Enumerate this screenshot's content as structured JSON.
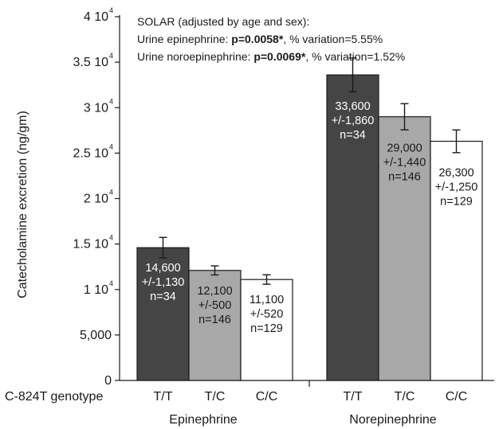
{
  "chart_data": {
    "type": "bar",
    "ylabel": "Catecholamine excretion (ng/gm)",
    "ylim": [
      0,
      40000
    ],
    "y_ticks": [
      {
        "value": 0,
        "label": "0",
        "exp": ""
      },
      {
        "value": 5000,
        "label": "5,000",
        "exp": ""
      },
      {
        "value": 10000,
        "label": "1 10",
        "exp": "4"
      },
      {
        "value": 15000,
        "label": "1.5 10",
        "exp": "4"
      },
      {
        "value": 20000,
        "label": "2 10",
        "exp": "4"
      },
      {
        "value": 25000,
        "label": "2.5 10",
        "exp": "4"
      },
      {
        "value": 30000,
        "label": "3 10",
        "exp": "4"
      },
      {
        "value": 35000,
        "label": "3.5 10",
        "exp": "4"
      },
      {
        "value": 40000,
        "label": "4 10",
        "exp": "4"
      }
    ],
    "x_axis_title": "C-824T genotype",
    "groups": [
      {
        "name": "Epinephrine",
        "bars": [
          {
            "category": "T/T",
            "value": 14600,
            "error": 1130,
            "lines": [
              "14,600",
              "+/-1,130",
              "n=34"
            ],
            "fill": "#454545"
          },
          {
            "category": "T/C",
            "value": 12100,
            "error": 500,
            "lines": [
              "12,100",
              "+/-500",
              "n=146"
            ],
            "fill": "#a8a8a8"
          },
          {
            "category": "C/C",
            "value": 11100,
            "error": 520,
            "lines": [
              "11,100",
              "+/-520",
              "n=129"
            ],
            "fill": "#ffffff"
          }
        ]
      },
      {
        "name": "Norepinephrine",
        "bars": [
          {
            "category": "T/T",
            "value": 33600,
            "error": 1860,
            "lines": [
              "33,600",
              "+/-1,860",
              "n=34"
            ],
            "fill": "#454545"
          },
          {
            "category": "T/C",
            "value": 29000,
            "error": 1440,
            "lines": [
              "29,000",
              "+/-1,440",
              "n=146"
            ],
            "fill": "#a8a8a8"
          },
          {
            "category": "C/C",
            "value": 26300,
            "error": 1250,
            "lines": [
              "26,300",
              "+/-1,250",
              "n=129"
            ],
            "fill": "#ffffff"
          }
        ]
      }
    ],
    "annotation": [
      {
        "text": "SOLAR (adjusted by age and sex):",
        "bold": "",
        "rest": ""
      },
      {
        "text": "Urine epinephrine: ",
        "bold": "p=0.0058*",
        "rest": ", % variation=5.55%"
      },
      {
        "text": "Urine noroepinephrine: ",
        "bold": "p=0.0069*",
        "rest": ", % variation=1.52%"
      }
    ],
    "colors": {
      "TT": "#454545",
      "TC": "#a8a8a8",
      "CC": "#ffffff",
      "stroke": "#1a1a1a"
    }
  }
}
